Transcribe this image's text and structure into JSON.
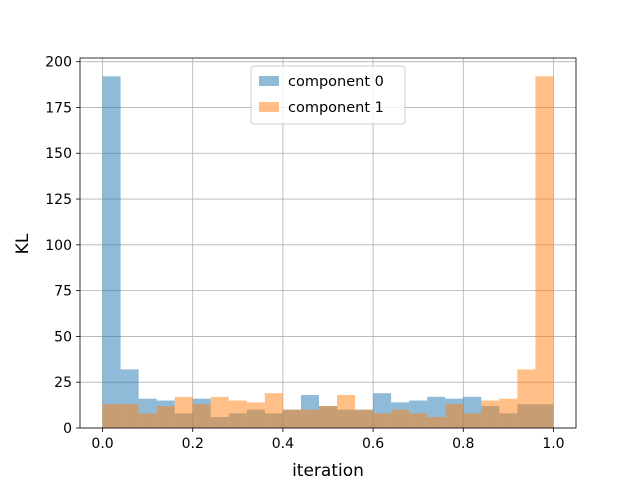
{
  "chart_data": {
    "type": "bar",
    "xlabel": "iteration",
    "ylabel": "KL",
    "xlim": [
      -0.05,
      1.05
    ],
    "ylim": [
      0,
      202
    ],
    "grid": true,
    "legend_position": "top-center",
    "bin_width": 0.04,
    "bin_starts": [
      0.0,
      0.04,
      0.08,
      0.12,
      0.16,
      0.2,
      0.24,
      0.28,
      0.32,
      0.36,
      0.4,
      0.44,
      0.48,
      0.52,
      0.56,
      0.6,
      0.64,
      0.68,
      0.72,
      0.76,
      0.8,
      0.84,
      0.88,
      0.92,
      0.96
    ],
    "xticks": [
      "0.0",
      "0.2",
      "0.4",
      "0.6",
      "0.8",
      "1.0"
    ],
    "yticks": [
      "0",
      "25",
      "50",
      "75",
      "100",
      "125",
      "150",
      "175",
      "200"
    ],
    "series": [
      {
        "name": "component 0",
        "color": "#1f77b4",
        "values": [
          192,
          32,
          16,
          15,
          8,
          16,
          6,
          8,
          10,
          8,
          10,
          18,
          12,
          10,
          10,
          19,
          14,
          15,
          17,
          16,
          17,
          12,
          8,
          13,
          13
        ]
      },
      {
        "name": "component 1",
        "color": "#ff7f0e",
        "values": [
          13,
          13,
          8,
          12,
          17,
          13,
          17,
          15,
          14,
          19,
          10,
          10,
          12,
          18,
          10,
          8,
          10,
          8,
          6,
          13,
          8,
          15,
          16,
          32,
          192
        ]
      }
    ]
  }
}
